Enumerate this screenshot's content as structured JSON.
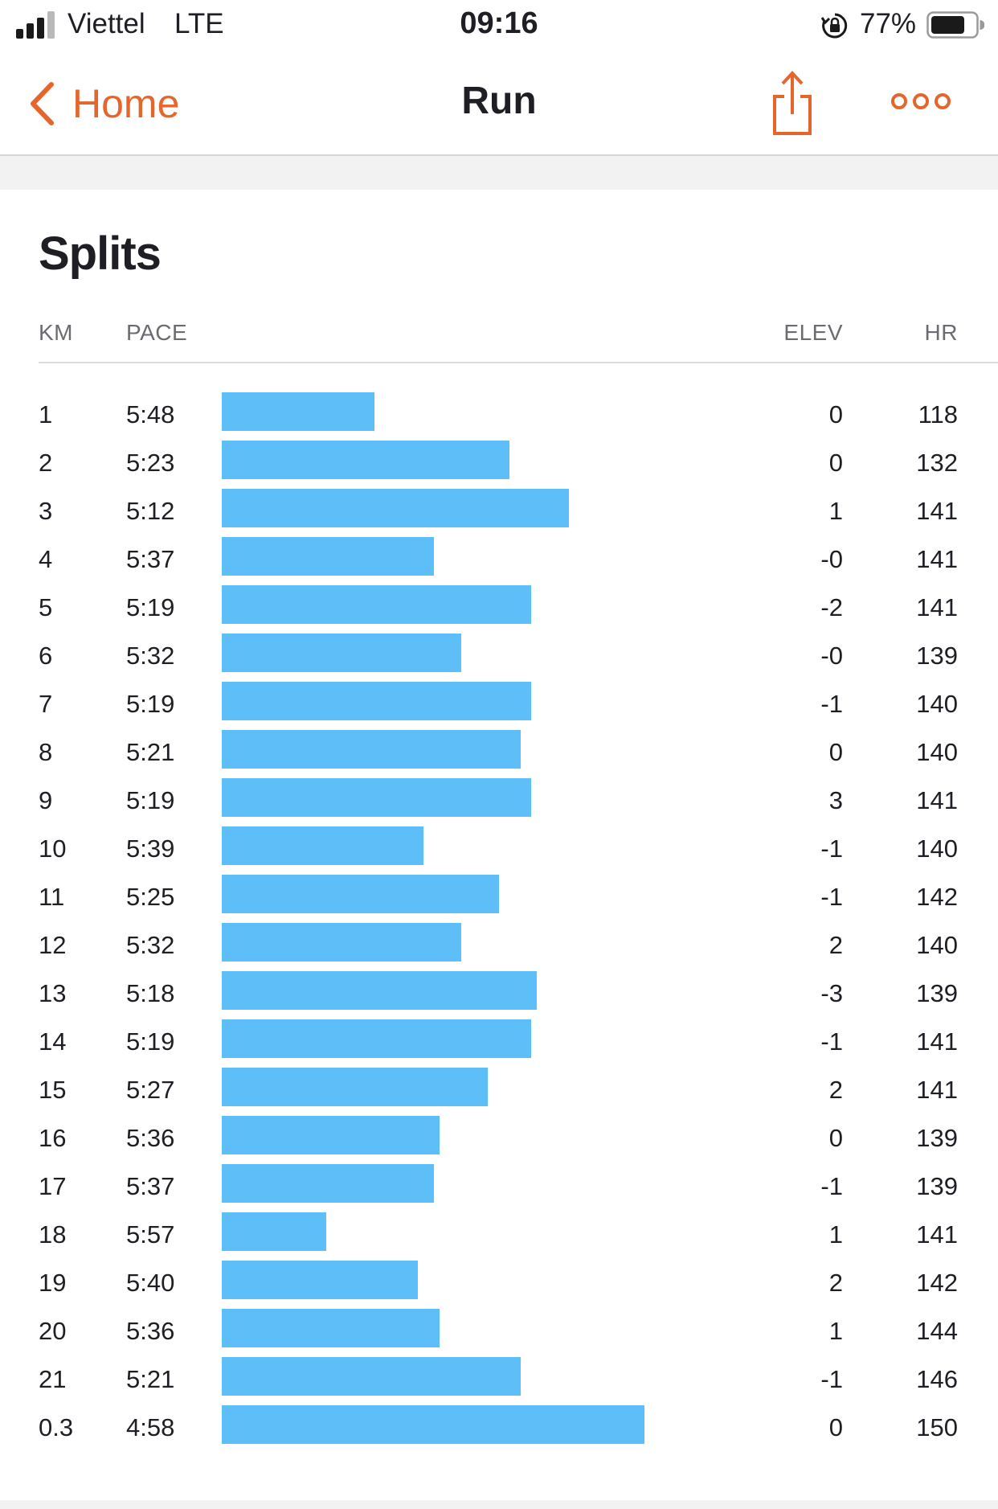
{
  "status_bar": {
    "carrier": "Viettel",
    "network": "LTE",
    "time": "09:16",
    "battery_percent": "77%",
    "signal_bars_active": 3,
    "signal_bars_total": 4,
    "battery_level": 0.77,
    "icons": [
      "signal-icon",
      "rotation-lock-icon",
      "battery-icon"
    ]
  },
  "nav": {
    "back_label": "Home",
    "title": "Run",
    "accent_color": "#e4662d",
    "icons": [
      "chevron-left-icon",
      "share-icon",
      "more-icon"
    ]
  },
  "splits": {
    "title": "Splits",
    "bar_color": "#5ebef7",
    "headers": {
      "km": "KM",
      "pace": "PACE",
      "elev": "ELEV",
      "hr": "HR"
    },
    "rows": [
      {
        "km": "1",
        "pace": "5:48",
        "elev": "0",
        "hr": "118"
      },
      {
        "km": "2",
        "pace": "5:23",
        "elev": "0",
        "hr": "132"
      },
      {
        "km": "3",
        "pace": "5:12",
        "elev": "1",
        "hr": "141"
      },
      {
        "km": "4",
        "pace": "5:37",
        "elev": "-0",
        "hr": "141"
      },
      {
        "km": "5",
        "pace": "5:19",
        "elev": "-2",
        "hr": "141"
      },
      {
        "km": "6",
        "pace": "5:32",
        "elev": "-0",
        "hr": "139"
      },
      {
        "km": "7",
        "pace": "5:19",
        "elev": "-1",
        "hr": "140"
      },
      {
        "km": "8",
        "pace": "5:21",
        "elev": "0",
        "hr": "140"
      },
      {
        "km": "9",
        "pace": "5:19",
        "elev": "3",
        "hr": "141"
      },
      {
        "km": "10",
        "pace": "5:39",
        "elev": "-1",
        "hr": "140"
      },
      {
        "km": "11",
        "pace": "5:25",
        "elev": "-1",
        "hr": "142"
      },
      {
        "km": "12",
        "pace": "5:32",
        "elev": "2",
        "hr": "140"
      },
      {
        "km": "13",
        "pace": "5:18",
        "elev": "-3",
        "hr": "139"
      },
      {
        "km": "14",
        "pace": "5:19",
        "elev": "-1",
        "hr": "141"
      },
      {
        "km": "15",
        "pace": "5:27",
        "elev": "2",
        "hr": "141"
      },
      {
        "km": "16",
        "pace": "5:36",
        "elev": "0",
        "hr": "139"
      },
      {
        "km": "17",
        "pace": "5:37",
        "elev": "-1",
        "hr": "139"
      },
      {
        "km": "18",
        "pace": "5:57",
        "elev": "1",
        "hr": "141"
      },
      {
        "km": "19",
        "pace": "5:40",
        "elev": "2",
        "hr": "142"
      },
      {
        "km": "20",
        "pace": "5:36",
        "elev": "1",
        "hr": "144"
      },
      {
        "km": "21",
        "pace": "5:21",
        "elev": "-1",
        "hr": "146"
      },
      {
        "km": "0.3",
        "pace": "4:58",
        "elev": "0",
        "hr": "150"
      }
    ]
  }
}
